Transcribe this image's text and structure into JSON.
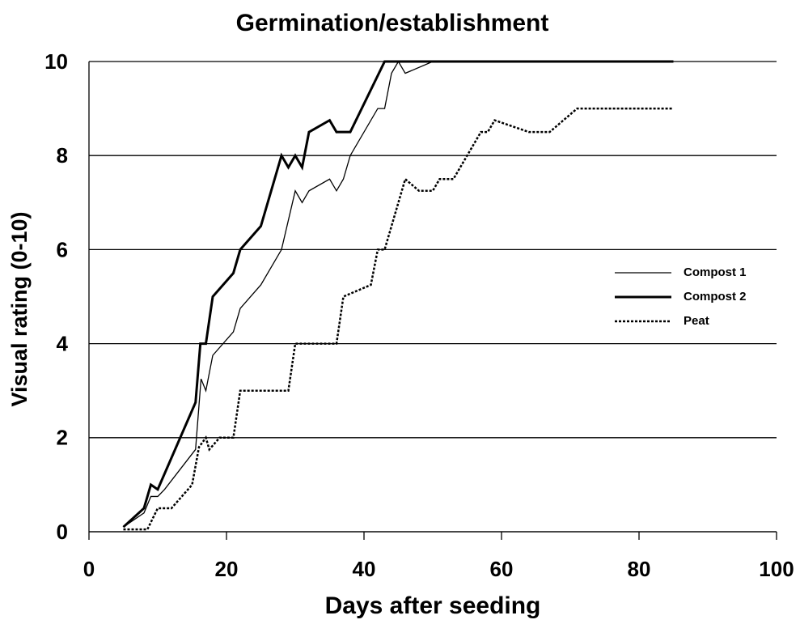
{
  "chart_data": {
    "type": "line",
    "title": "Germination/establishment",
    "x_label": "Days after seeding",
    "y_label": "Visual rating  (0-10)",
    "xlim": [
      0,
      100
    ],
    "xticks": [
      0,
      20,
      40,
      60,
      80,
      100
    ],
    "ylim": [
      0,
      10
    ],
    "yticks": [
      0,
      2,
      4,
      6,
      8,
      10
    ],
    "grid": true,
    "legend_position": "right",
    "series": [
      {
        "name": "Compost 1",
        "color": "#000000",
        "width": 1.3,
        "dash": "solid",
        "x": [
          5,
          8,
          9,
          10,
          11,
          15.5,
          16.3,
          17,
          18,
          21,
          22,
          25,
          28,
          30,
          31,
          32,
          35,
          36,
          37,
          38,
          42,
          43,
          44,
          45,
          46,
          50,
          85
        ],
        "values": [
          0.1,
          0.4,
          0.75,
          0.75,
          0.9,
          1.75,
          3.25,
          3,
          3.75,
          4.25,
          4.75,
          5.25,
          6,
          7.25,
          7,
          7.25,
          7.5,
          7.25,
          7.5,
          8,
          9,
          9,
          9.75,
          10,
          9.75,
          10,
          10
        ]
      },
      {
        "name": "Compost 2",
        "color": "#000000",
        "width": 3,
        "dash": "solid",
        "x": [
          5,
          8,
          9,
          10,
          15.5,
          16.2,
          17,
          18,
          21,
          22,
          25,
          28,
          29,
          30,
          31,
          32,
          35,
          36,
          38,
          43,
          85
        ],
        "values": [
          0.1,
          0.5,
          1,
          0.9,
          2.75,
          4,
          4,
          5,
          5.5,
          6,
          6.5,
          8,
          7.75,
          8,
          7.75,
          8.5,
          8.75,
          8.5,
          8.5,
          10,
          10
        ]
      },
      {
        "name": "Peat",
        "color": "#000000",
        "width": 2.5,
        "dash": "dotted",
        "x": [
          5,
          8.5,
          10,
          12,
          15,
          16,
          17,
          17.5,
          19,
          21,
          22,
          29,
          30,
          36,
          37,
          41,
          42,
          43,
          46,
          48,
          50,
          51,
          53,
          57,
          58,
          59,
          64,
          67,
          71,
          85
        ],
        "values": [
          0.05,
          0.05,
          0.5,
          0.5,
          1,
          1.8,
          2,
          1.75,
          2,
          2,
          3,
          3,
          4,
          4,
          5,
          5.25,
          6,
          6,
          7.5,
          7.25,
          7.25,
          7.5,
          7.5,
          8.5,
          8.5,
          8.75,
          8.5,
          8.5,
          9,
          9
        ]
      }
    ]
  }
}
